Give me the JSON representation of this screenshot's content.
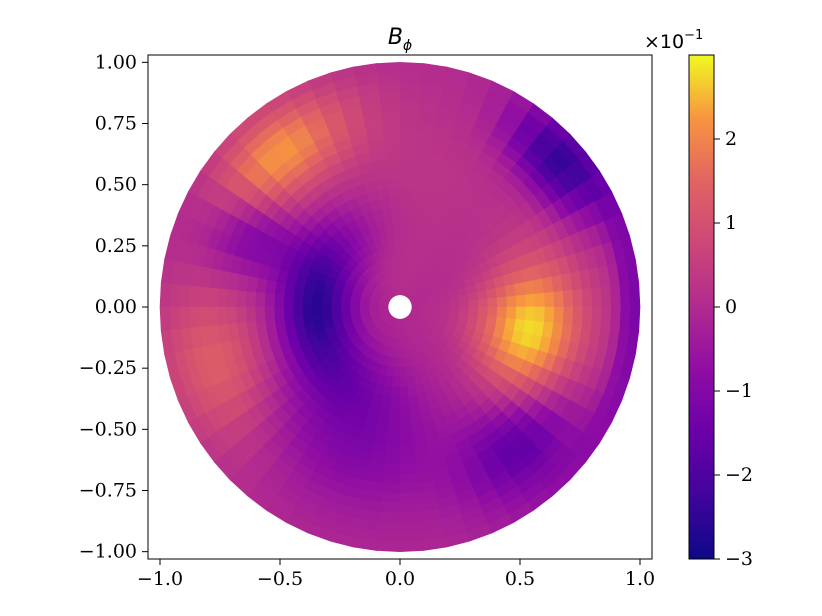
{
  "chart_data": {
    "type": "heatmap",
    "projection": "polar-disk",
    "title": "B",
    "title_subscript": "ϕ",
    "x": {
      "ticks": [
        -1.0,
        -0.5,
        0.0,
        0.5,
        1.0
      ],
      "tick_labels": [
        "−1.0",
        "−0.5",
        "0.0",
        "0.5",
        "1.0"
      ],
      "lim": [
        -1.05,
        1.05
      ]
    },
    "y": {
      "ticks": [
        -1.0,
        -0.75,
        -0.5,
        -0.25,
        0.0,
        0.25,
        0.5,
        0.75,
        1.0
      ],
      "tick_labels": [
        "−1.00",
        "−0.75",
        "−0.50",
        "−0.25",
        "0.00",
        "0.25",
        "0.50",
        "0.75",
        "1.00"
      ],
      "lim": [
        -1.03,
        1.03
      ]
    },
    "colormap": "plasma",
    "colorbar": {
      "range": [
        -3,
        3
      ],
      "ticks": [
        -3,
        -2,
        -1,
        0,
        1,
        2
      ],
      "tick_labels": [
        "−3",
        "−2",
        "−1",
        "0",
        "1",
        "2"
      ],
      "multiplier_label": "×10",
      "multiplier_exponent": "−1"
    },
    "field": {
      "inner_radius": 0.05,
      "outer_radius": 1.0,
      "radial_bins": 24,
      "angular_bins": 64,
      "approx_value_ranges": {
        "min": -2.8,
        "max": 2.8
      },
      "features": [
        {
          "r": 0.55,
          "theta_deg": -10,
          "value": 2.8,
          "spread_r": 0.22,
          "spread_theta_deg": 30
        },
        {
          "r": 0.8,
          "theta_deg": 130,
          "value": 2.2,
          "spread_r": 0.18,
          "spread_theta_deg": 24
        },
        {
          "r": 0.8,
          "theta_deg": 198,
          "value": 1.4,
          "spread_r": 0.22,
          "spread_theta_deg": 24
        },
        {
          "r": 0.35,
          "theta_deg": 180,
          "value": -2.6,
          "spread_r": 0.16,
          "spread_theta_deg": 55
        },
        {
          "r": 0.88,
          "theta_deg": 42,
          "value": -2.4,
          "spread_r": 0.14,
          "spread_theta_deg": 16
        },
        {
          "r": 0.7,
          "theta_deg": 155,
          "value": -1.4,
          "spread_r": 0.2,
          "spread_theta_deg": 14
        },
        {
          "r": 0.75,
          "theta_deg": -48,
          "value": -1.8,
          "spread_r": 0.2,
          "spread_theta_deg": 20
        },
        {
          "r": 0.55,
          "theta_deg": -110,
          "value": -1.1,
          "spread_r": 0.3,
          "spread_theta_deg": 40
        },
        {
          "r": 0.97,
          "theta_deg": 0,
          "value": -1.2,
          "spread_r": 0.06,
          "spread_theta_deg": 40
        },
        {
          "r": 0.5,
          "theta_deg": 85,
          "value": 0.3,
          "spread_r": 0.4,
          "spread_theta_deg": 40
        }
      ]
    }
  }
}
